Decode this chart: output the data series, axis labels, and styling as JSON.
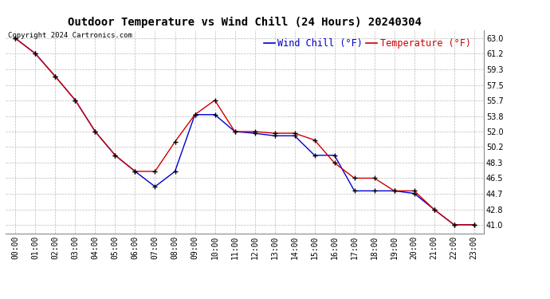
{
  "title": "Outdoor Temperature vs Wind Chill (24 Hours) 20240304",
  "copyright": "Copyright 2024 Cartronics.com",
  "legend_wind_chill": "Wind Chill (°F)",
  "legend_temperature": "Temperature (°F)",
  "hours": [
    "00:00",
    "01:00",
    "02:00",
    "03:00",
    "04:00",
    "05:00",
    "06:00",
    "07:00",
    "08:00",
    "09:00",
    "10:00",
    "11:00",
    "12:00",
    "13:00",
    "14:00",
    "15:00",
    "16:00",
    "17:00",
    "18:00",
    "19:00",
    "20:00",
    "21:00",
    "22:00",
    "23:00"
  ],
  "temperature": [
    63.0,
    61.2,
    58.5,
    55.7,
    52.0,
    49.2,
    47.3,
    47.3,
    50.8,
    54.0,
    55.7,
    52.0,
    52.0,
    51.8,
    51.8,
    51.0,
    48.3,
    46.5,
    46.5,
    45.0,
    45.0,
    42.8,
    41.0,
    41.0
  ],
  "wind_chill": [
    63.0,
    61.2,
    58.5,
    55.7,
    52.0,
    49.2,
    47.3,
    45.5,
    47.3,
    54.0,
    54.0,
    52.0,
    51.8,
    51.5,
    51.5,
    49.2,
    49.2,
    45.0,
    45.0,
    45.0,
    44.7,
    42.8,
    41.0,
    41.0
  ],
  "temp_color": "#cc0000",
  "wind_chill_color": "#0000cc",
  "bg_color": "#ffffff",
  "grid_color": "#bbbbbb",
  "marker": "+",
  "marker_color": "#000000",
  "ylim": [
    40.0,
    64.0
  ],
  "yticks": [
    41.0,
    42.8,
    44.7,
    46.5,
    48.3,
    50.2,
    52.0,
    53.8,
    55.7,
    57.5,
    59.3,
    61.2,
    63.0
  ],
  "title_fontsize": 10,
  "axis_fontsize": 7,
  "legend_fontsize": 8.5,
  "fig_width": 6.9,
  "fig_height": 3.75,
  "dpi": 100
}
